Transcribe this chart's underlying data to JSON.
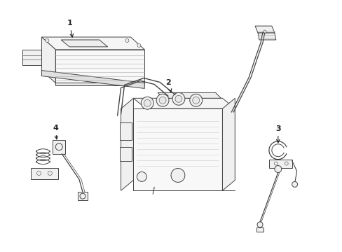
{
  "bg_color": "#ffffff",
  "lc": "#444444",
  "lw": 0.7,
  "lw_thin": 0.4,
  "figsize": [
    4.89,
    3.6
  ],
  "dpi": 100,
  "face_color": "#ffffff",
  "face_color2": "#f5f5f5",
  "face_color3": "#eeeeee"
}
